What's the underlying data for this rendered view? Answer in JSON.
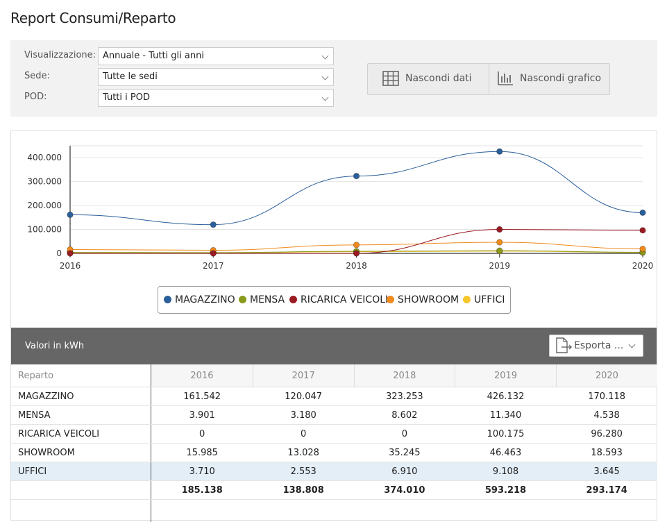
{
  "page": {
    "title": "Report Consumi/Reparto"
  },
  "filters": {
    "visualizzazione": {
      "label": "Visualizzazione:",
      "value": "Annuale - Tutti gli anni"
    },
    "sede": {
      "label": "Sede:",
      "value": "Tutte le sedi"
    },
    "pod": {
      "label": "POD:",
      "value": "Tutti i POD"
    }
  },
  "buttons": {
    "hide_data": "Nascondi dati",
    "hide_chart": "Nascondi grafico"
  },
  "chart_data": {
    "type": "line",
    "x": [
      2016,
      2017,
      2018,
      2019,
      2020
    ],
    "ylim": [
      0,
      450000
    ],
    "yticks": [
      "0",
      "100.000",
      "200.000",
      "300.000",
      "400.000"
    ],
    "ytick_values": [
      0,
      100000,
      200000,
      300000,
      400000
    ],
    "legend_position": "bottom",
    "grid": true,
    "series": [
      {
        "name": "MAGAZZINO",
        "color": "#2b5f9a",
        "values": [
          161542,
          120047,
          323253,
          426132,
          170118
        ]
      },
      {
        "name": "MENSA",
        "color": "#8a9a1d",
        "values": [
          3901,
          3180,
          8602,
          11340,
          4538
        ]
      },
      {
        "name": "RICARICA VEICOLI",
        "color": "#9b1b23",
        "values": [
          0,
          0,
          0,
          100175,
          96280
        ]
      },
      {
        "name": "SHOWROOM",
        "color": "#f08a1c",
        "values": [
          15985,
          13028,
          35245,
          46463,
          18593
        ]
      },
      {
        "name": "UFFICI",
        "color": "#f6c62c",
        "values": [
          3710,
          2553,
          6910,
          9108,
          3645
        ]
      }
    ]
  },
  "table": {
    "units_label": "Valori in kWh",
    "export_label": "Esporta ...",
    "columns": [
      "Reparto",
      "2016",
      "2017",
      "2018",
      "2019",
      "2020"
    ],
    "rows": [
      [
        "MAGAZZINO",
        "161.542",
        "120.047",
        "323.253",
        "426.132",
        "170.118"
      ],
      [
        "MENSA",
        "3.901",
        "3.180",
        "8.602",
        "11.340",
        "4.538"
      ],
      [
        "RICARICA VEICOLI",
        "0",
        "0",
        "0",
        "100.175",
        "96.280"
      ],
      [
        "SHOWROOM",
        "15.985",
        "13.028",
        "35.245",
        "46.463",
        "18.593"
      ],
      [
        "UFFICI",
        "3.710",
        "2.553",
        "6.910",
        "9.108",
        "3.645"
      ]
    ],
    "totals": [
      "",
      "185.138",
      "138.808",
      "374.010",
      "593.218",
      "293.174"
    ]
  }
}
